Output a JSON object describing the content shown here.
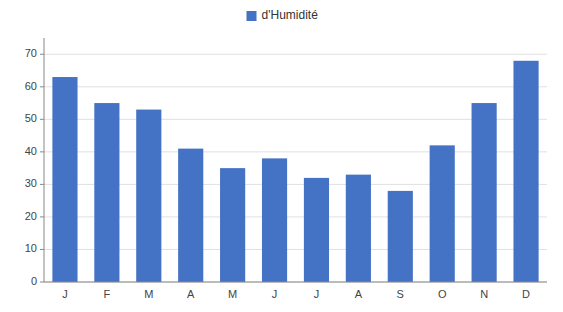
{
  "chart_data": {
    "type": "bar",
    "categories": [
      "J",
      "F",
      "M",
      "A",
      "M",
      "J",
      "J",
      "A",
      "S",
      "O",
      "N",
      "D"
    ],
    "series": [
      {
        "name": "d'Humidité",
        "color": "#4472C4",
        "values": [
          63,
          55,
          53,
          41,
          35,
          38,
          32,
          33,
          28,
          42,
          55,
          68
        ]
      }
    ],
    "ylim": [
      0,
      75
    ],
    "yticks": [
      0,
      10,
      20,
      30,
      40,
      50,
      60,
      70
    ],
    "grid": true,
    "legend": "top"
  }
}
